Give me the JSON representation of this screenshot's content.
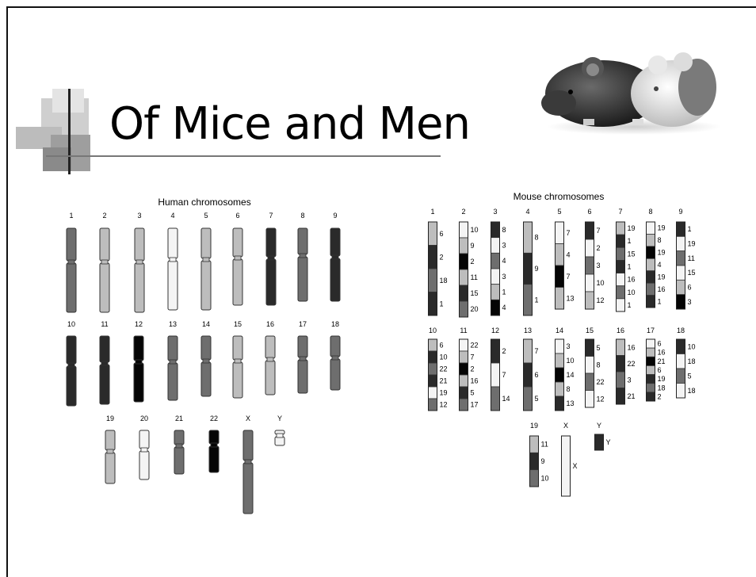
{
  "slide": {
    "title": "Of Mice and Men"
  },
  "image": {
    "icon": "mice-photo",
    "description": ""
  },
  "human": {
    "title": "Human chromosomes",
    "rows": [
      [
        "1",
        "2",
        "3",
        "4",
        "5",
        "6",
        "7",
        "8",
        "9"
      ],
      [
        "10",
        "11",
        "12",
        "13",
        "14",
        "15",
        "16",
        "17",
        "18"
      ],
      [
        "19",
        "20",
        "21",
        "22",
        "X",
        "Y"
      ]
    ]
  },
  "mouse": {
    "title": "Mouse chromosomes",
    "chromosomes": [
      {
        "id": "1",
        "labels": [
          "6",
          "2",
          "18",
          "1"
        ]
      },
      {
        "id": "2",
        "labels": [
          "10",
          "9",
          "2",
          "11",
          "15",
          "20"
        ]
      },
      {
        "id": "3",
        "labels": [
          "8",
          "3",
          "4",
          "3",
          "1",
          "4"
        ]
      },
      {
        "id": "4",
        "labels": [
          "8",
          "9",
          "1"
        ]
      },
      {
        "id": "5",
        "labels": [
          "7",
          "4",
          "7",
          "13"
        ]
      },
      {
        "id": "6",
        "labels": [
          "7",
          "2",
          "3",
          "10",
          "12"
        ]
      },
      {
        "id": "7",
        "labels": [
          "19",
          "1",
          "15",
          "1",
          "16",
          "10",
          "1"
        ]
      },
      {
        "id": "8",
        "labels": [
          "19",
          "8",
          "19",
          "4",
          "19",
          "16",
          "1"
        ]
      },
      {
        "id": "9",
        "labels": [
          "1",
          "19",
          "11",
          "15",
          "6",
          "3"
        ]
      },
      {
        "id": "10",
        "labels": [
          "6",
          "10",
          "22",
          "21",
          "19",
          "12"
        ]
      },
      {
        "id": "11",
        "labels": [
          "22",
          "7",
          "2",
          "16",
          "5",
          "17"
        ]
      },
      {
        "id": "12",
        "labels": [
          "2",
          "7",
          "14"
        ]
      },
      {
        "id": "13",
        "labels": [
          "7",
          "6",
          "5"
        ]
      },
      {
        "id": "14",
        "labels": [
          "3",
          "10",
          "14",
          "8",
          "13"
        ]
      },
      {
        "id": "15",
        "labels": [
          "5",
          "8",
          "22",
          "12"
        ]
      },
      {
        "id": "16",
        "labels": [
          "16",
          "22",
          "3",
          "21"
        ]
      },
      {
        "id": "17",
        "labels": [
          "6",
          "16",
          "21",
          "6",
          "19",
          "18",
          "2"
        ]
      },
      {
        "id": "18",
        "labels": [
          "10",
          "18",
          "5",
          "18"
        ]
      },
      {
        "id": "19",
        "labels": [
          "11",
          "9",
          "10"
        ]
      },
      {
        "id": "X",
        "labels": [
          "X"
        ]
      },
      {
        "id": "Y",
        "labels": [
          "Y"
        ]
      }
    ]
  },
  "colors": {
    "dark": "#2a2a2a",
    "mid": "#6e6e6e",
    "light": "#bdbdbd",
    "white": "#f4f4f4",
    "black": "#050505"
  }
}
